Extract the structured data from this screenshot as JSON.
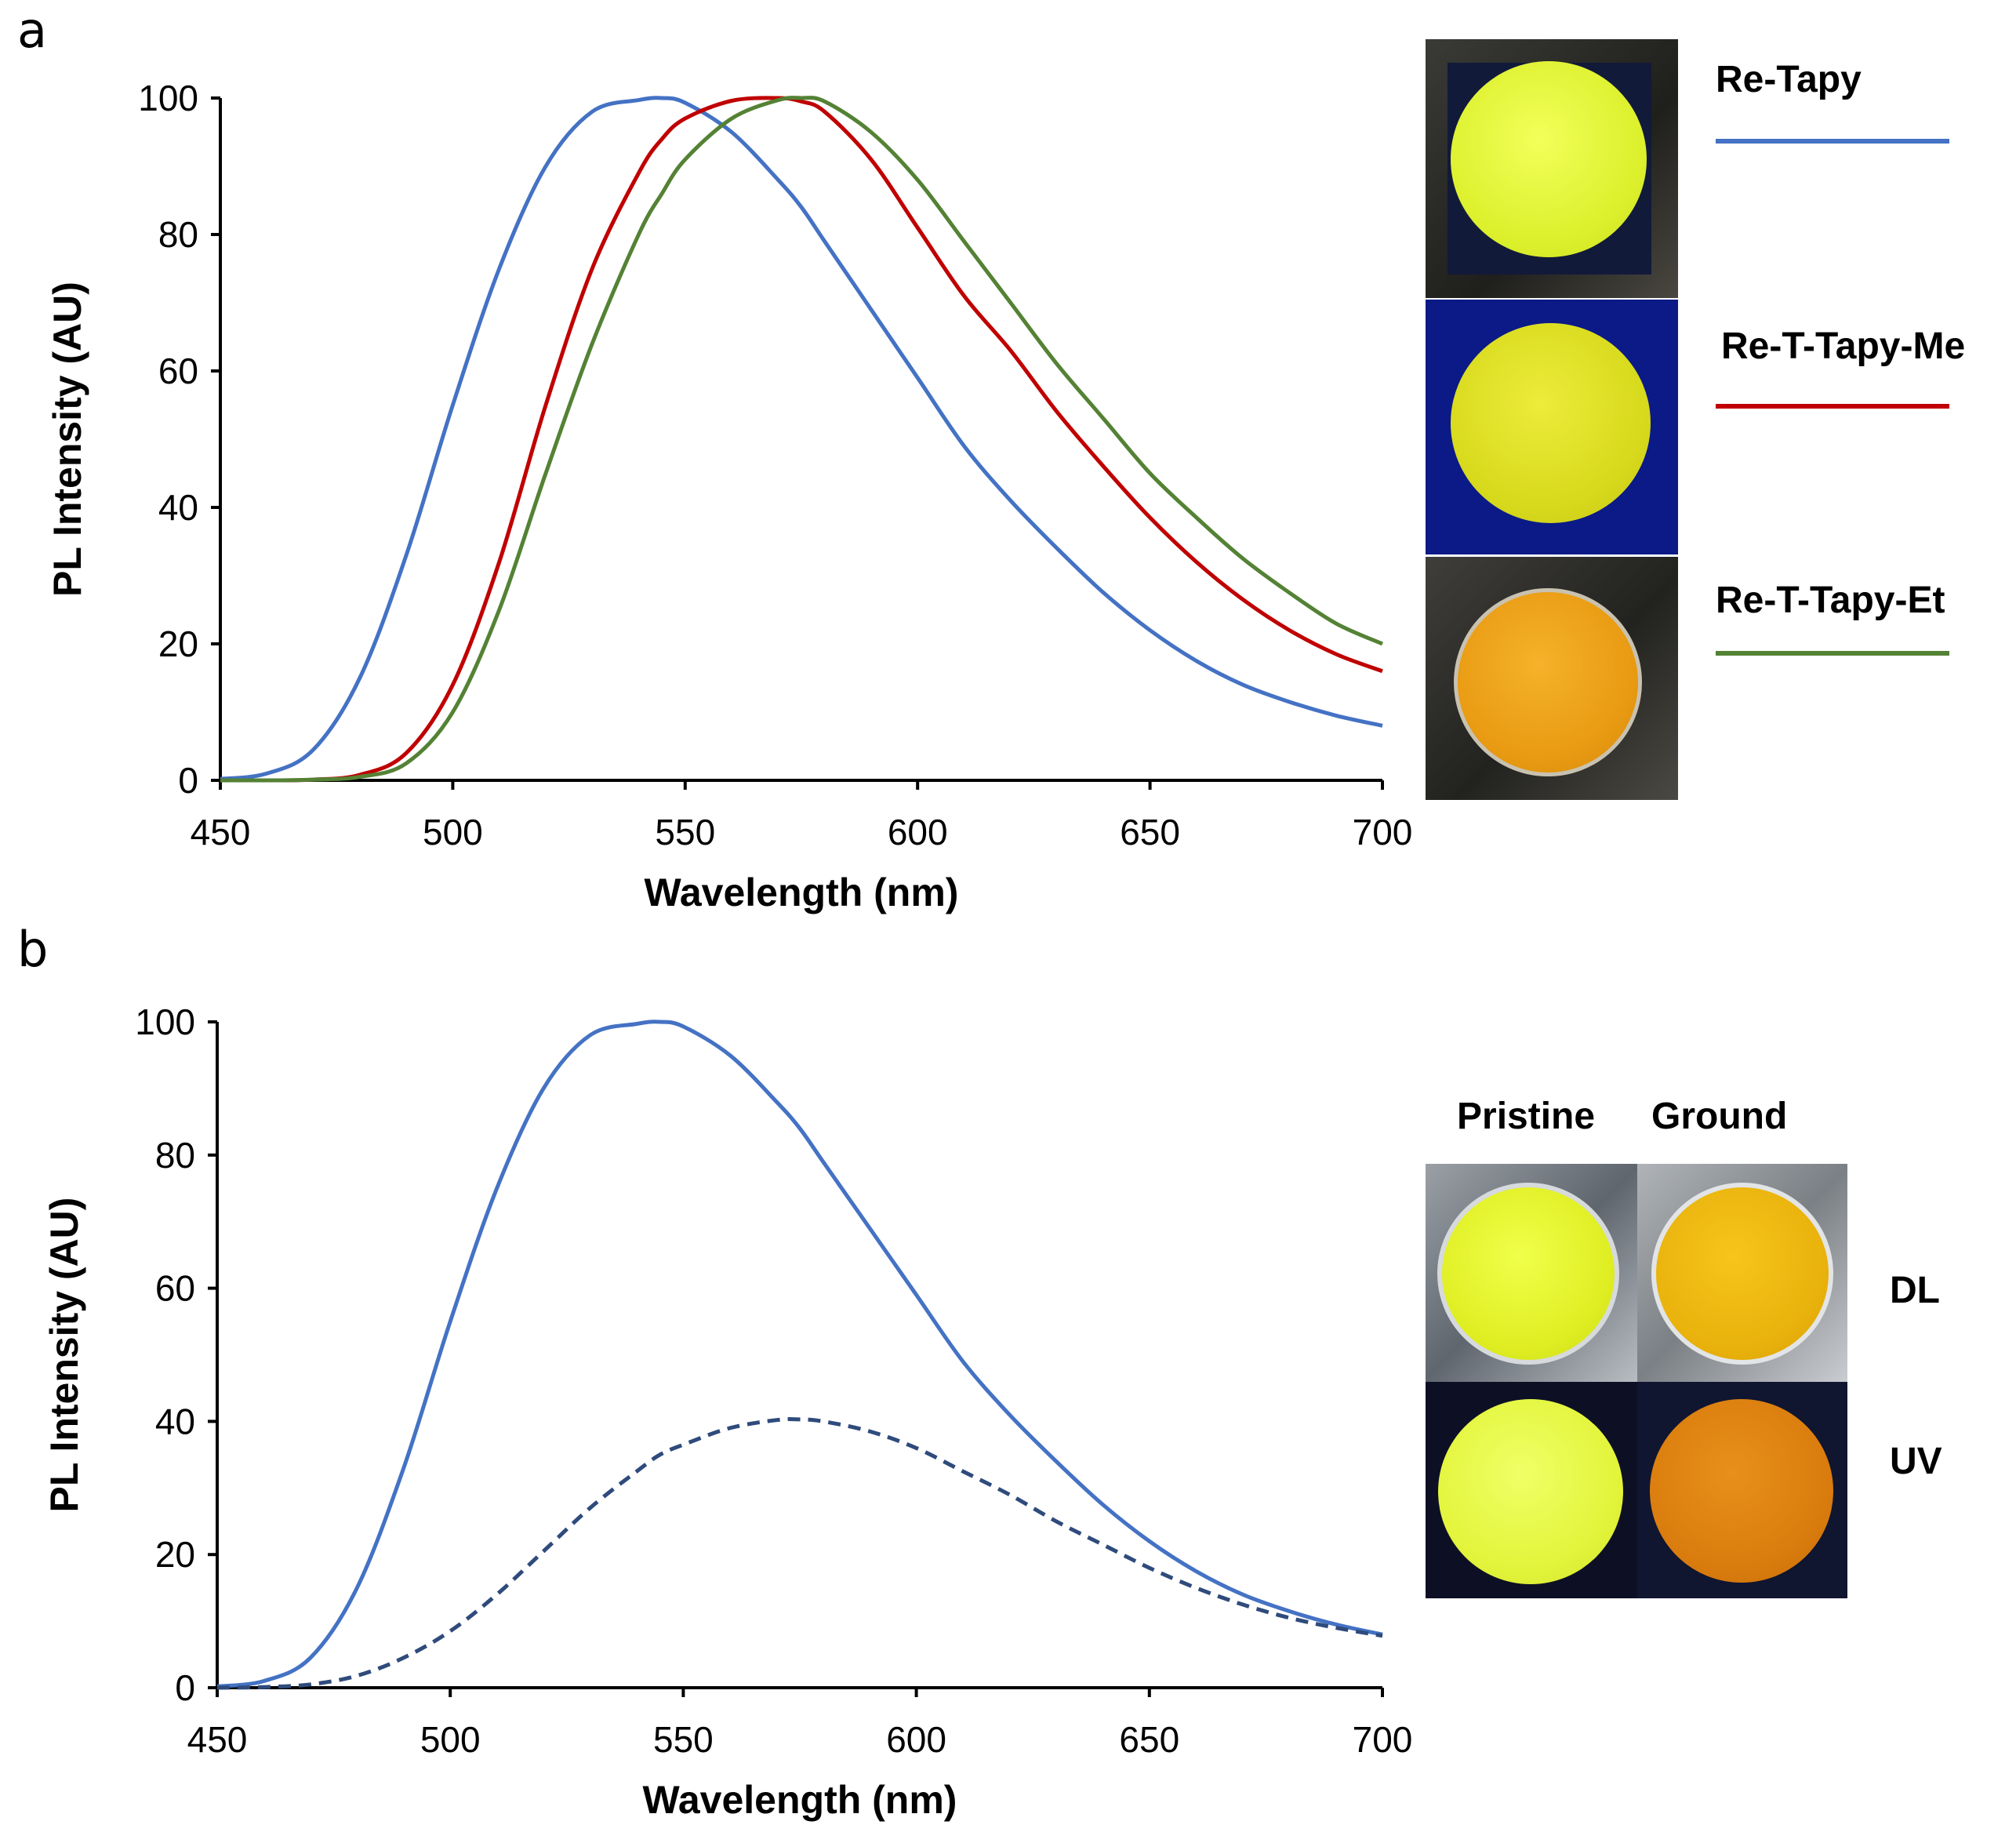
{
  "panels": {
    "a": {
      "letter": "a"
    },
    "b": {
      "letter": "b"
    }
  },
  "legend_a": [
    {
      "label": "Re-Tapy",
      "color": "#4472C4"
    },
    {
      "label": "Re-T-Tapy-Me",
      "color": "#C00000"
    },
    {
      "label": "Re-T-Tapy-Et",
      "color": "#548235"
    }
  ],
  "photos_b": {
    "columns": [
      "Pristine",
      "Ground"
    ],
    "rows": [
      "DL",
      "UV"
    ]
  },
  "chart_data": [
    {
      "type": "line",
      "title": "",
      "xlabel": "Wavelength  (nm)",
      "ylabel": "PL Intensity  (AU)",
      "xlim": [
        450,
        700
      ],
      "ylim": [
        0,
        100
      ],
      "xticks": [
        450,
        500,
        550,
        600,
        650,
        700
      ],
      "yticks": [
        0,
        20,
        40,
        60,
        80,
        100
      ],
      "grid": false,
      "legend_placement": "right",
      "x": [
        450,
        460,
        470,
        480,
        490,
        500,
        510,
        520,
        530,
        540,
        545,
        550,
        560,
        570,
        575,
        580,
        590,
        600,
        610,
        620,
        630,
        640,
        650,
        660,
        670,
        680,
        690,
        700
      ],
      "series": [
        {
          "name": "Re-Tapy",
          "color": "#4472C4",
          "style": "solid",
          "values": [
            0.2,
            1.0,
            4.5,
            15,
            33,
            55,
            75,
            90,
            98,
            99.7,
            100,
            99.3,
            95,
            88,
            84,
            79,
            69,
            59,
            49,
            41,
            34,
            27.5,
            22,
            17.5,
            14,
            11.5,
            9.5,
            8
          ]
        },
        {
          "name": "Re-T-Tapy-Me",
          "color": "#C00000",
          "style": "solid",
          "values": [
            0,
            0,
            0.1,
            0.8,
            4,
            14,
            32,
            55,
            75,
            89,
            94,
            97,
            99.6,
            100,
            99.5,
            98,
            91,
            81,
            71,
            63,
            54,
            46,
            38.5,
            32,
            26.5,
            22,
            18.5,
            16
          ]
        },
        {
          "name": "Re-T-Tapy-Et",
          "color": "#548235",
          "style": "solid",
          "values": [
            0,
            0,
            0.1,
            0.5,
            2.5,
            10,
            25,
            45,
            64,
            80,
            86,
            91,
            97,
            99.7,
            100,
            99.5,
            95,
            88,
            79,
            70,
            61,
            53,
            45,
            38.5,
            32.5,
            27.5,
            23,
            20
          ]
        }
      ]
    },
    {
      "type": "line",
      "title": "",
      "xlabel": "Wavelength  (nm)",
      "ylabel": "PL Intensity  (AU)",
      "xlim": [
        450,
        700
      ],
      "ylim": [
        0,
        100
      ],
      "xticks": [
        450,
        500,
        550,
        600,
        650,
        700
      ],
      "yticks": [
        0,
        20,
        40,
        60,
        80,
        100
      ],
      "grid": false,
      "x": [
        450,
        460,
        470,
        480,
        490,
        500,
        510,
        520,
        530,
        540,
        545,
        550,
        560,
        570,
        575,
        580,
        590,
        600,
        610,
        620,
        630,
        640,
        650,
        660,
        670,
        680,
        690,
        700
      ],
      "series": [
        {
          "color": "#4472C4",
          "style": "solid",
          "values": [
            0.2,
            1.0,
            4.5,
            15,
            33,
            55,
            75,
            90,
            98,
            99.7,
            100,
            99.3,
            95,
            88,
            84,
            79,
            69,
            59,
            49,
            41,
            34,
            27.5,
            22,
            17.5,
            14,
            11.5,
            9.5,
            8
          ]
        },
        {
          "color": "#2F4B7C",
          "style": "dashed",
          "values": [
            0,
            0.1,
            0.5,
            1.8,
            4.5,
            8.5,
            14,
            20.5,
            27,
            32.5,
            35,
            36.5,
            39,
            40.2,
            40.3,
            40,
            38.5,
            36,
            32.5,
            29,
            25,
            21.5,
            18,
            15,
            12.5,
            10.5,
            9,
            7.8
          ]
        }
      ]
    }
  ]
}
